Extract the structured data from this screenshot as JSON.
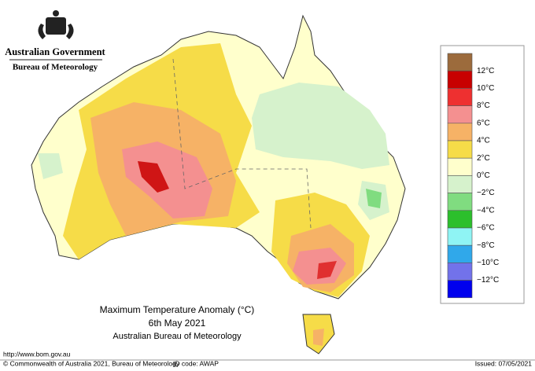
{
  "header": {
    "government": "Australian Government",
    "agency": "Bureau of Meteorology"
  },
  "map": {
    "title": "Maximum Temperature Anomaly (°C)",
    "date": "6th May 2021",
    "source": "Australian Bureau of Meteorology"
  },
  "legend": {
    "colors": [
      "#9c6b3c",
      "#c80000",
      "#ee3030",
      "#f49090",
      "#f6b266",
      "#f6dc48",
      "#ffffcc",
      "#d6f2cc",
      "#80dc80",
      "#2cbf2c",
      "#8ff4f4",
      "#30a8ea",
      "#7272ea",
      "#0000ee"
    ],
    "labels": [
      "12°C",
      "10°C",
      "8°C",
      "6°C",
      "4°C",
      "2°C",
      "0°C",
      "−2°C",
      "−4°C",
      "−6°C",
      "−8°C",
      "−10°C",
      "−12°C"
    ]
  },
  "footer": {
    "url": "http://www.bom.gov.au",
    "copyright": "© Commonwealth of Australia 2021, Bureau of Meteorology",
    "id_code": "ID code: AWAP",
    "issued": "Issued: 07/05/2021"
  }
}
